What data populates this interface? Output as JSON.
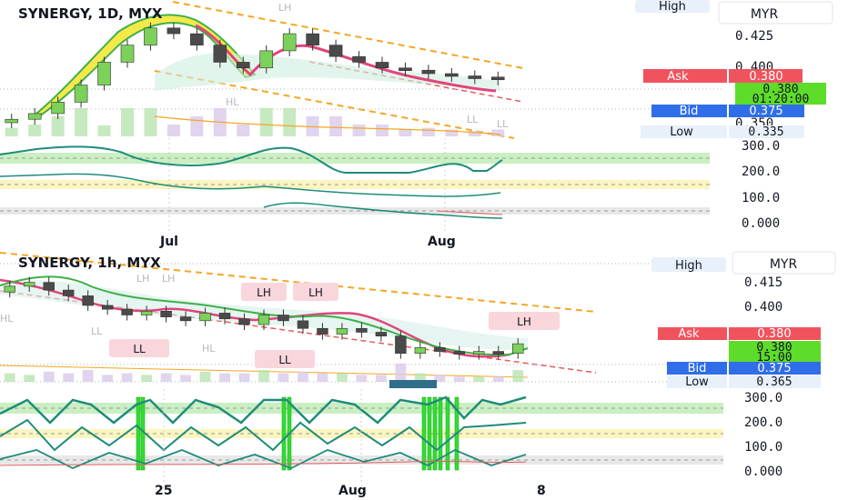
{
  "colors": {
    "up": "#7bd15a",
    "down": "#e0457b",
    "body_dark": "#4a4a4a",
    "ribbon_fill": "#f5e94a",
    "ribbon_green": "#3fb049",
    "trend_orange": "#f5a623",
    "trend_red": "#e35d5d",
    "osc": "#1f8c7a",
    "band_green": "#c9efc2",
    "band_yellow": "#fbf5c0",
    "band_grey": "#e8e8e8",
    "ask": "#f0535e",
    "price": "#5ddc2a",
    "bid": "#2f6ee8",
    "pill_bg": "#e8f0fa"
  },
  "top_chart": {
    "symbol": "SYNERGY, 1D, MYX",
    "currency": "MYR",
    "price_ticks": [
      "0.425",
      "0.400",
      "0.350"
    ],
    "high_label": "High",
    "ask_label": "Ask",
    "ask_value": "0.380",
    "last_price": "0.380",
    "countdown": "01:20:00",
    "bid_label": "Bid",
    "bid_value": "0.375",
    "low_label": "Low",
    "low_value": "0.335",
    "osc_ticks": [
      "300.0",
      "200.0",
      "100.0",
      "0.000"
    ],
    "x_ticks": [
      "Jul",
      "Aug"
    ],
    "annotations": [
      "LH",
      "HL",
      "LL",
      "LL"
    ]
  },
  "bottom_chart": {
    "symbol": "SYNERGY, 1h, MYX",
    "currency": "MYR",
    "price_ticks": [
      "0.415",
      "0.400"
    ],
    "high_label": "High",
    "ask_label": "Ask",
    "ask_value": "0.380",
    "last_price": "0.380",
    "countdown": "15:00",
    "bid_label": "Bid",
    "bid_value": "0.375",
    "low_label": "Low",
    "low_value": "0.365",
    "osc_ticks": [
      "300.0",
      "200.0",
      "100.0",
      "0.000"
    ],
    "x_ticks": [
      "25",
      "Aug",
      "8"
    ],
    "annotations": [
      "LH",
      "LH",
      "LL",
      "LL",
      "LH",
      "HL",
      "HL",
      "LH",
      "LH",
      "LL"
    ]
  },
  "chart_data": [
    {
      "type": "candlestick",
      "title": "SYNERGY, 1D, MYX",
      "x_ticks": [
        "Jul",
        "Aug"
      ],
      "y_ticks": [
        "0.425",
        "0.400",
        "0.350"
      ],
      "ylabel": "MYR",
      "series": [
        {
          "name": "close",
          "values": [
            0.345,
            0.35,
            0.36,
            0.375,
            0.395,
            0.41,
            0.425,
            0.42,
            0.41,
            0.395,
            0.39,
            0.405,
            0.42,
            0.41,
            0.4,
            0.395,
            0.39,
            0.388,
            0.385,
            0.383,
            0.382,
            0.38
          ]
        }
      ],
      "price_labels": {
        "ask": 0.38,
        "last": 0.38,
        "bid": 0.375,
        "low": 0.335
      }
    },
    {
      "type": "line",
      "title": "",
      "y_ticks": [
        "300.0",
        "200.0",
        "100.0",
        "0.000"
      ],
      "x_ticks": [
        "Jul",
        "Aug"
      ],
      "series": [
        {
          "values": [
            280,
            250,
            230,
            220,
            240,
            280,
            300,
            270,
            200,
            210,
            260,
            240,
            220,
            240,
            280
          ]
        },
        {
          "values": [
            170,
            160,
            140,
            120,
            130,
            150,
            140,
            120,
            110,
            105,
            100,
            100,
            115,
            125
          ]
        },
        {
          "values": [
            40,
            45,
            50,
            60,
            70,
            65,
            55,
            45,
            40,
            35,
            30,
            30
          ]
        }
      ]
    },
    {
      "type": "candlestick",
      "title": "SYNERGY, 1h, MYX",
      "x_ticks": [
        "25",
        "Aug",
        "8"
      ],
      "y_ticks": [
        "0.415",
        "0.400"
      ],
      "ylabel": "MYR",
      "series": [
        {
          "name": "close",
          "values": [
            0.41,
            0.412,
            0.408,
            0.405,
            0.4,
            0.398,
            0.395,
            0.397,
            0.394,
            0.392,
            0.396,
            0.393,
            0.39,
            0.395,
            0.392,
            0.388,
            0.385,
            0.388,
            0.386,
            0.384,
            0.375,
            0.378,
            0.376,
            0.375,
            0.376,
            0.375,
            0.38
          ]
        }
      ],
      "price_labels": {
        "ask": 0.38,
        "last": 0.38,
        "bid": 0.375,
        "low": 0.365
      }
    },
    {
      "type": "line",
      "title": "",
      "y_ticks": [
        "300.0",
        "200.0",
        "100.0",
        "0.000"
      ],
      "x_ticks": [
        "25",
        "Aug",
        "8"
      ],
      "series": [
        {
          "values": [
            280,
            200,
            300,
            240,
            180,
            300,
            260,
            200,
            300,
            270,
            210,
            300,
            280,
            190,
            300,
            300
          ]
        },
        {
          "values": [
            180,
            140,
            220,
            150,
            110,
            200,
            160,
            120,
            210,
            190,
            130,
            200,
            210,
            140,
            190,
            195
          ]
        },
        {
          "values": [
            20,
            40,
            15,
            30,
            50,
            25,
            10,
            40,
            30,
            20,
            45,
            30,
            10,
            30,
            20,
            25
          ]
        }
      ]
    }
  ]
}
